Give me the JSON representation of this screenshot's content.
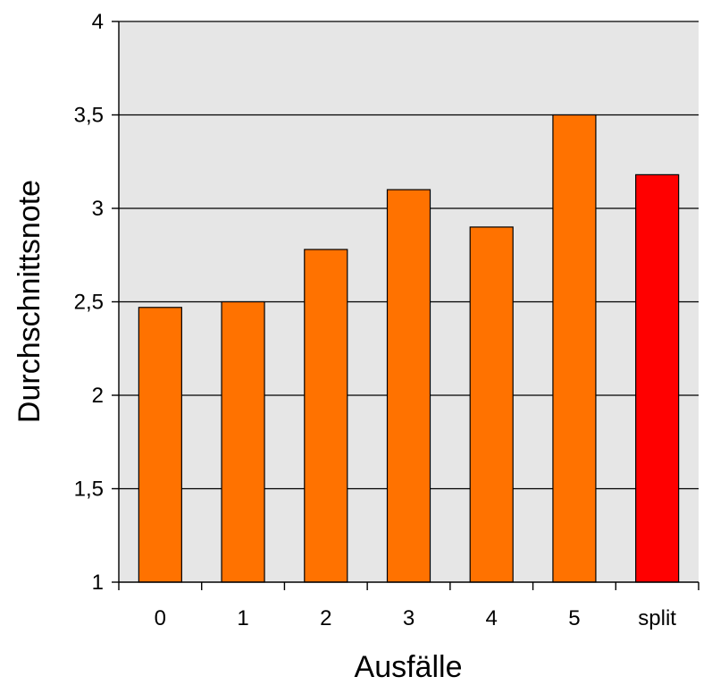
{
  "chart_data": {
    "type": "bar",
    "title": "",
    "xlabel": "Ausfälle",
    "ylabel": "Durchschnittsnote",
    "categories": [
      "0",
      "1",
      "2",
      "3",
      "4",
      "5",
      "split"
    ],
    "values": [
      2.47,
      2.5,
      2.78,
      3.1,
      2.9,
      3.5,
      3.18
    ],
    "bar_colors": [
      "#FF7200",
      "#FF7200",
      "#FF7200",
      "#FF7200",
      "#FF7200",
      "#FF7200",
      "#FF0000"
    ],
    "ylim": [
      1,
      4
    ],
    "yticks": [
      1,
      1.5,
      2,
      2.5,
      3,
      3.5,
      4
    ],
    "ytick_labels": [
      "1",
      "1,5",
      "2",
      "2,5",
      "3",
      "3,5",
      "4"
    ],
    "grid": true,
    "legend": "none",
    "colors": {
      "plot_background": "#E6E6E6",
      "gridline": "#000000",
      "bar_outline": "#000000"
    }
  }
}
